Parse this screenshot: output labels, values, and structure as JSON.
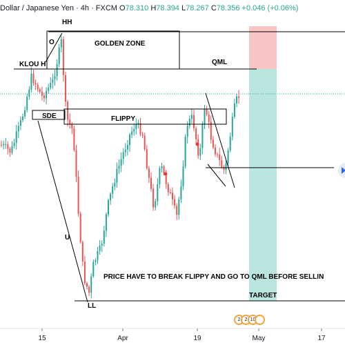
{
  "header": {
    "symbol": "Dollar / Japanese Yen · 4h · FXCM",
    "open_label": "O",
    "open": "78.310",
    "high_label": "H",
    "high": "78.394",
    "low_label": "L",
    "low": "78.267",
    "close_label": "C",
    "close": "78.356",
    "change": "+0.046 (+0.06%)"
  },
  "annotations": {
    "hh": "HH",
    "o_mark": "O",
    "golden_zone": "GOLDEN ZONE",
    "klou": "KLOU H",
    "qml": "QML",
    "sde": "SDE",
    "flippy": "FLIPPY",
    "u_mark": "U",
    "note": "PRICE HAVE TO BREAK FLIPPY AND GO TO QML BEFORE SELLIN",
    "target": "TARGET",
    "ll": "LL"
  },
  "events": {
    "icons": [
      "2",
      "2",
      "10",
      ""
    ]
  },
  "colors": {
    "up": "#26a69a",
    "down": "#ef5350",
    "stop_zone": "#f8c4c4",
    "target_zone": "#b9e6e1",
    "current_price_line": "#26a69a",
    "drawings": "#000000"
  },
  "chart_data": {
    "type": "candlestick",
    "instrument": "Dollar / Japanese Yen",
    "timeframe": "4h",
    "source": "FXCM",
    "x_ticks": [
      "15",
      "Apr",
      "19",
      "May",
      "17"
    ],
    "last_candle": {
      "open": 78.31,
      "high": 78.394,
      "low": 78.267,
      "close": 78.356
    },
    "change": 0.046,
    "change_pct": 0.06
  }
}
